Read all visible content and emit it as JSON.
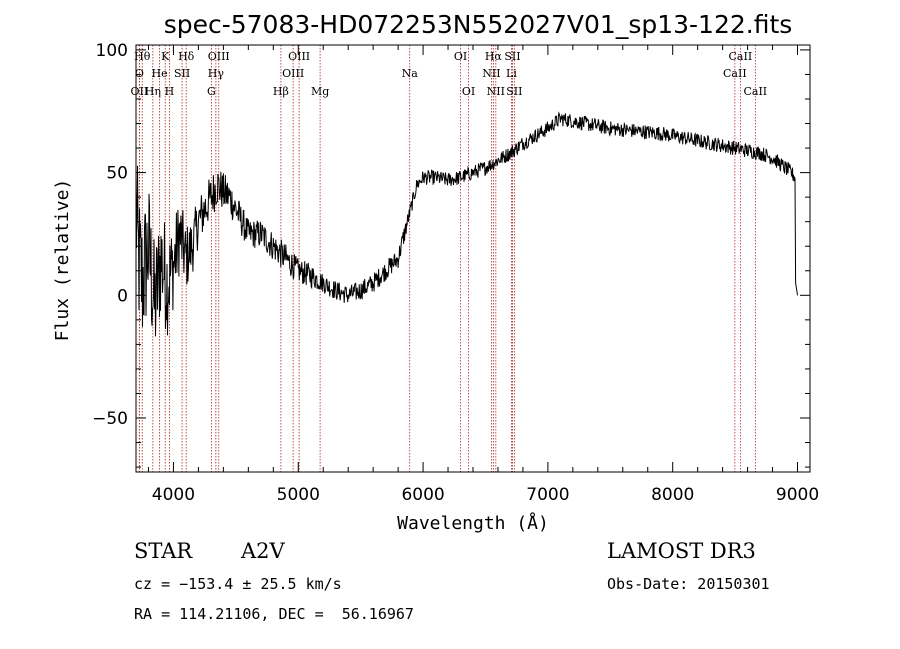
{
  "chart_data": {
    "type": "line",
    "title": "spec-57083-HD072253N552027V01_sp13-122.fits",
    "xlabel": "Wavelength (Å)",
    "ylabel": "Flux (relative)",
    "xlim": [
      3700,
      9100
    ],
    "ylim": [
      -72,
      102
    ],
    "xticks": [
      4000,
      5000,
      6000,
      7000,
      8000,
      9000
    ],
    "yticks": [
      -50,
      0,
      50,
      100
    ],
    "x_tick_labels": [
      "4000",
      "5000",
      "6000",
      "7000",
      "8000",
      "9000"
    ],
    "y_tick_labels": [
      "−50",
      "0",
      "50",
      "100"
    ],
    "spectrum_anchors": {
      "x": [
        3700,
        3720,
        3750,
        3800,
        3850,
        3900,
        3950,
        4000,
        4050,
        4100,
        4150,
        4200,
        4250,
        4300,
        4350,
        4400,
        4450,
        4500,
        4600,
        4700,
        4800,
        4900,
        5000,
        5100,
        5200,
        5300,
        5400,
        5500,
        5600,
        5700,
        5800,
        5850,
        5900,
        5950,
        6000,
        6100,
        6200,
        6300,
        6400,
        6500,
        6600,
        6700,
        6800,
        6900,
        7000,
        7100,
        7200,
        7300,
        7500,
        7700,
        7900,
        8100,
        8300,
        8500,
        8700,
        8800,
        8900,
        8950,
        8980,
        8985,
        9000
      ],
      "y": [
        35,
        15,
        5,
        20,
        -5,
        15,
        5,
        12,
        25,
        15,
        20,
        30,
        35,
        40,
        45,
        42,
        40,
        35,
        25,
        25,
        20,
        15,
        10,
        8,
        5,
        2,
        0,
        2,
        5,
        10,
        15,
        25,
        35,
        45,
        48,
        48,
        47,
        48,
        50,
        52,
        55,
        58,
        62,
        65,
        68,
        72,
        71,
        70,
        68,
        67,
        66,
        64,
        62,
        60,
        58,
        56,
        52,
        50,
        48,
        5,
        0
      ],
      "noise": [
        30,
        30,
        30,
        28,
        26,
        24,
        22,
        18,
        16,
        14,
        12,
        10,
        10,
        9,
        9,
        8,
        8,
        7,
        6,
        6,
        6,
        6,
        5,
        5,
        4,
        4,
        4,
        4,
        4,
        4,
        4,
        4,
        3,
        3,
        3,
        3,
        3,
        3,
        3,
        3,
        3,
        3,
        3,
        3,
        3,
        3,
        3,
        3,
        3,
        3,
        3,
        3,
        3,
        3,
        3,
        3,
        3,
        3,
        3,
        0,
        0
      ]
    },
    "spectral_lines": [
      {
        "label": "Hθ",
        "x": 3750,
        "row": 0
      },
      {
        "label": "O",
        "x": 3727,
        "row": 1
      },
      {
        "label": "OII",
        "x": 3727,
        "row": 2
      },
      {
        "label": "Hη",
        "x": 3835,
        "row": 2
      },
      {
        "label": "He",
        "x": 3889,
        "row": 1
      },
      {
        "label": "K",
        "x": 3934,
        "row": 0
      },
      {
        "label": "H",
        "x": 3968,
        "row": 2
      },
      {
        "label": "SII",
        "x": 4069,
        "row": 1
      },
      {
        "label": "Hδ",
        "x": 4102,
        "row": 0
      },
      {
        "label": "OIII",
        "x": 4363,
        "row": 0
      },
      {
        "label": "Hγ",
        "x": 4340,
        "row": 1
      },
      {
        "label": "G",
        "x": 4304,
        "row": 2
      },
      {
        "label": "Hβ",
        "x": 4861,
        "row": 2
      },
      {
        "label": "OIII",
        "x": 5007,
        "row": 0
      },
      {
        "label": "OIII",
        "x": 4959,
        "row": 1
      },
      {
        "label": "Mg",
        "x": 5175,
        "row": 2
      },
      {
        "label": "Na",
        "x": 5893,
        "row": 1
      },
      {
        "label": "OI",
        "x": 6300,
        "row": 0
      },
      {
        "label": "OI",
        "x": 6364,
        "row": 2
      },
      {
        "label": "Hα",
        "x": 6563,
        "row": 0
      },
      {
        "label": "NII",
        "x": 6548,
        "row": 1
      },
      {
        "label": "NII",
        "x": 6583,
        "row": 2
      },
      {
        "label": "SII",
        "x": 6716,
        "row": 0
      },
      {
        "label": "Li",
        "x": 6708,
        "row": 1
      },
      {
        "label": "SII",
        "x": 6731,
        "row": 2
      },
      {
        "label": "CaII",
        "x": 8542,
        "row": 0
      },
      {
        "label": "CaII",
        "x": 8498,
        "row": 1
      },
      {
        "label": "CaII",
        "x": 8662,
        "row": 2
      }
    ]
  },
  "info": {
    "object_type": "STAR",
    "spectral_class": "A2V",
    "survey": "LAMOST DR3",
    "cz": "cz = −153.4 ± 25.5 km/s",
    "obs_date": "Obs-Date: 20150301",
    "coords": "RA = 114.21106, DEC =  56.16967"
  },
  "colors": {
    "spectrum": "#000000",
    "line_marker": "#b22222",
    "axis": "#000000"
  }
}
